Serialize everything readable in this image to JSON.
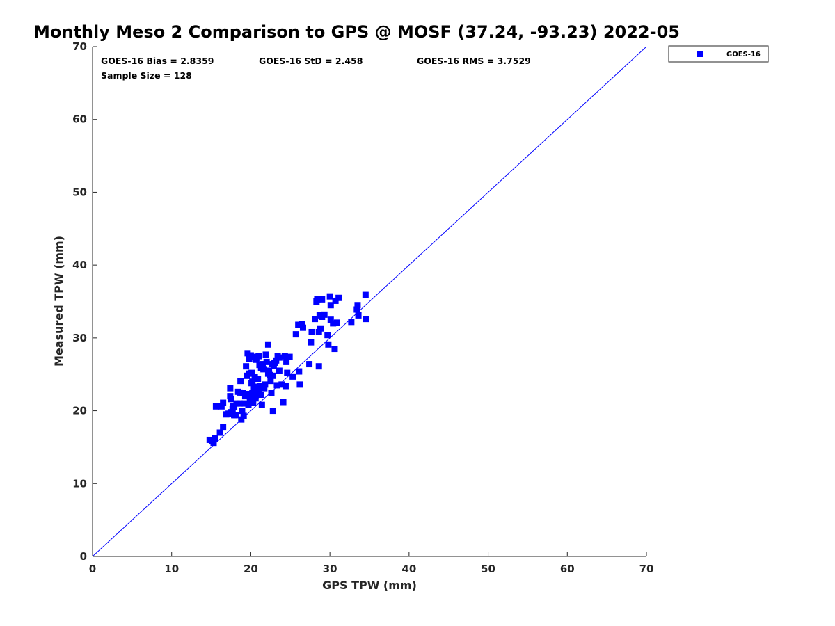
{
  "chart_data": {
    "type": "scatter",
    "title": "Monthly Meso 2 Comparison to GPS @ MOSF (37.24, -93.23) 2022-05",
    "xlabel": "GPS TPW (mm)",
    "ylabel": "Measured TPW (mm)",
    "xlim": [
      0,
      70
    ],
    "ylim": [
      0,
      70
    ],
    "xticks": [
      "0",
      "10",
      "20",
      "30",
      "40",
      "50",
      "60",
      "70"
    ],
    "yticks": [
      "0",
      "10",
      "20",
      "30",
      "40",
      "50",
      "60",
      "70"
    ],
    "grid": false,
    "legend_position": "outside-top-right",
    "reference_line": {
      "name": "one-to-one line",
      "x": [
        0,
        70
      ],
      "y": [
        0,
        70
      ],
      "color": "#0000ff"
    },
    "stats": {
      "bias": "GOES-16 Bias = 2.8359",
      "std": "GOES-16 StD = 2.458",
      "rms": "GOES-16 RMS = 3.7529",
      "sample_size": "Sample Size = 128"
    },
    "series": [
      {
        "name": "GOES-16",
        "marker": "square",
        "color": "#0000ff",
        "points": [
          [
            14.8,
            16.0
          ],
          [
            15.1,
            15.8
          ],
          [
            15.3,
            15.6
          ],
          [
            15.5,
            16.2
          ],
          [
            15.6,
            20.6
          ],
          [
            16.1,
            17.0
          ],
          [
            16.3,
            20.6
          ],
          [
            16.5,
            21.1
          ],
          [
            16.5,
            17.8
          ],
          [
            16.9,
            19.5
          ],
          [
            17.2,
            19.6
          ],
          [
            17.4,
            22.0
          ],
          [
            17.4,
            23.1
          ],
          [
            17.5,
            21.6
          ],
          [
            17.5,
            19.8
          ],
          [
            17.7,
            20.2
          ],
          [
            17.8,
            20.6
          ],
          [
            17.9,
            19.4
          ],
          [
            18.1,
            19.4
          ],
          [
            18.2,
            21.0
          ],
          [
            18.6,
            21.0
          ],
          [
            18.6,
            22.5
          ],
          [
            18.7,
            24.1
          ],
          [
            18.8,
            18.8
          ],
          [
            18.9,
            20.0
          ],
          [
            19.0,
            22.4
          ],
          [
            19.1,
            19.3
          ],
          [
            19.2,
            21.0
          ],
          [
            19.3,
            22.0
          ],
          [
            19.4,
            26.1
          ],
          [
            19.5,
            24.8
          ],
          [
            19.6,
            22.3
          ],
          [
            19.6,
            27.9
          ],
          [
            19.7,
            20.8
          ],
          [
            19.8,
            25.1
          ],
          [
            19.8,
            27.1
          ],
          [
            19.9,
            21.9
          ],
          [
            20.0,
            27.6
          ],
          [
            20.1,
            25.2
          ],
          [
            20.2,
            24.0
          ],
          [
            20.2,
            22.4
          ],
          [
            20.3,
            21.1
          ],
          [
            20.3,
            27.4
          ],
          [
            20.4,
            23.3
          ],
          [
            20.5,
            24.6
          ],
          [
            20.5,
            22.5
          ],
          [
            20.6,
            21.7
          ],
          [
            20.7,
            27.0
          ],
          [
            20.8,
            22.8
          ],
          [
            20.9,
            24.4
          ],
          [
            21.0,
            27.5
          ],
          [
            21.1,
            26.3
          ],
          [
            21.2,
            23.4
          ],
          [
            21.3,
            22.2
          ],
          [
            21.4,
            20.8
          ],
          [
            21.5,
            26.4
          ],
          [
            21.6,
            25.7
          ],
          [
            21.7,
            23.1
          ],
          [
            21.8,
            23.6
          ],
          [
            21.9,
            27.7
          ],
          [
            22.0,
            26.7
          ],
          [
            22.2,
            29.1
          ],
          [
            22.2,
            25.1
          ],
          [
            22.3,
            25.5
          ],
          [
            22.5,
            24.1
          ],
          [
            22.6,
            22.4
          ],
          [
            22.7,
            26.4
          ],
          [
            22.8,
            20.0
          ],
          [
            22.8,
            24.8
          ],
          [
            23.0,
            26.6
          ],
          [
            23.2,
            26.9
          ],
          [
            23.3,
            23.5
          ],
          [
            23.4,
            27.5
          ],
          [
            23.6,
            25.5
          ],
          [
            23.9,
            23.6
          ],
          [
            24.1,
            21.2
          ],
          [
            24.3,
            27.5
          ],
          [
            24.4,
            23.4
          ],
          [
            24.5,
            26.7
          ],
          [
            24.6,
            25.2
          ],
          [
            24.9,
            27.4
          ],
          [
            25.7,
            30.5
          ],
          [
            26.0,
            31.8
          ],
          [
            26.1,
            25.4
          ],
          [
            26.2,
            23.6
          ],
          [
            26.5,
            31.9
          ],
          [
            26.6,
            31.4
          ],
          [
            27.4,
            26.4
          ],
          [
            27.6,
            29.4
          ],
          [
            27.7,
            30.8
          ],
          [
            28.1,
            32.6
          ],
          [
            28.3,
            35.0
          ],
          [
            28.4,
            35.3
          ],
          [
            28.6,
            30.8
          ],
          [
            28.6,
            26.1
          ],
          [
            28.7,
            33.1
          ],
          [
            28.8,
            31.3
          ],
          [
            29.0,
            32.9
          ],
          [
            29.0,
            35.3
          ],
          [
            29.3,
            33.2
          ],
          [
            29.7,
            30.4
          ],
          [
            29.8,
            29.1
          ],
          [
            30.0,
            35.7
          ],
          [
            30.1,
            32.5
          ],
          [
            30.1,
            34.5
          ],
          [
            30.4,
            32.0
          ],
          [
            30.6,
            28.5
          ],
          [
            30.7,
            35.1
          ],
          [
            30.9,
            32.1
          ],
          [
            31.1,
            35.5
          ],
          [
            32.7,
            32.2
          ],
          [
            33.4,
            33.9
          ],
          [
            33.5,
            34.5
          ],
          [
            33.6,
            33.1
          ],
          [
            34.5,
            35.9
          ],
          [
            34.6,
            32.6
          ],
          [
            18.4,
            22.6
          ],
          [
            19.9,
            21.4
          ],
          [
            20.1,
            23.8
          ],
          [
            21.0,
            23.0
          ],
          [
            21.3,
            25.9
          ],
          [
            22.4,
            24.9
          ],
          [
            23.6,
            27.3
          ],
          [
            17.9,
            20.5
          ],
          [
            19.3,
            22.1
          ],
          [
            20.6,
            22.1
          ],
          [
            22.9,
            26.2
          ],
          [
            25.3,
            24.7
          ]
        ]
      }
    ]
  }
}
